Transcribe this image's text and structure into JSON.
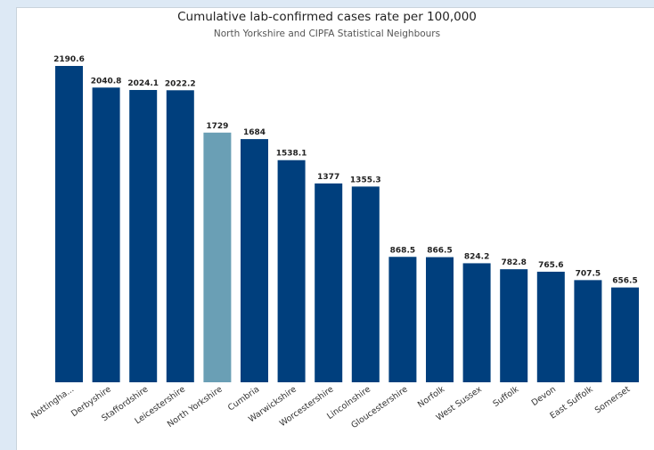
{
  "chart_data": {
    "type": "bar",
    "title": "Cumulative lab-confirmed cases rate per 100,000",
    "subtitle": "North Yorkshire and CIPFA Statistical Neighbours",
    "categories": [
      "Nottingha...",
      "Derbyshire",
      "Staffordshire",
      "Leicestershire",
      "North Yorkshire",
      "Cumbria",
      "Warwickshire",
      "Worcestershire",
      "Lincolnshire",
      "Gloucestershire",
      "Norfolk",
      "West Sussex",
      "Suffolk",
      "Devon",
      "East Suffolk",
      "Somerset"
    ],
    "values": [
      2190.6,
      2040.8,
      2024.1,
      2022.2,
      1729,
      1684,
      1538.1,
      1377,
      1355.3,
      868.5,
      866.5,
      824.2,
      782.8,
      765.6,
      707.5,
      656.5
    ],
    "value_labels": [
      "2190.6",
      "2040.8",
      "2024.1",
      "2022.2",
      "1729",
      "1684",
      "1538.1",
      "1377",
      "1355.3",
      "868.5",
      "866.5",
      "824.2",
      "782.8",
      "765.6",
      "707.5",
      "656.5"
    ],
    "highlight_category": "North Yorkshire",
    "ylim": [
      0,
      2190.6
    ],
    "xlabel": "",
    "ylabel": "",
    "grid": false,
    "legend": "none",
    "colors": {
      "bar": "#003f7d",
      "highlight": "#6a9fb5"
    }
  }
}
